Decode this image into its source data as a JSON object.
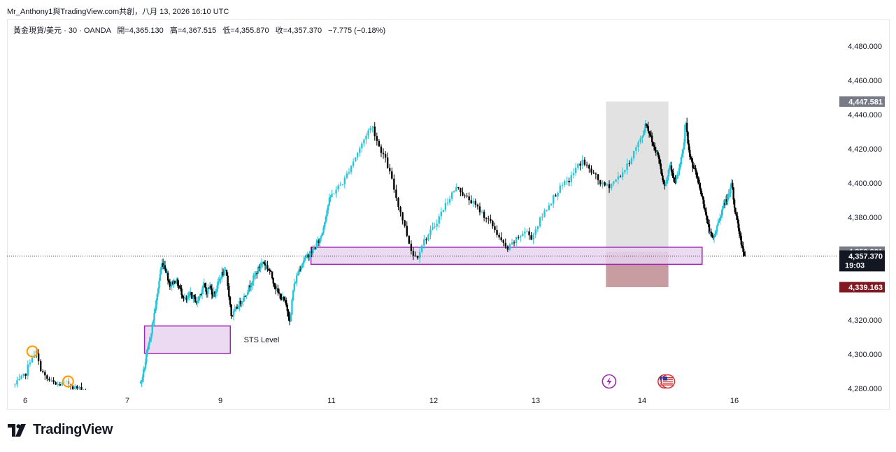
{
  "header": {
    "attribution": "Mr_Anthony1與TradingView.com共創，八月 13, 2026 16:10 UTC"
  },
  "legend": {
    "symbol": "黃金現貨/美元 · 30 · OANDA",
    "open": "開=4,365.130",
    "high": "高=4,367.515",
    "low": "低=4,355.870",
    "close": "收=4,357.370",
    "change": "−7.775 (−0.18%)"
  },
  "brand": {
    "name": "TradingView"
  },
  "chart_data": {
    "type": "candlestick",
    "symbol": "黃金現貨/美元 · 30 · OANDA",
    "ylim": [
      4278,
      4490
    ],
    "y_ticks": [
      4280,
      4300,
      4320,
      4340,
      4360,
      4380,
      4400,
      4420,
      4440,
      4460,
      4480
    ],
    "y_tick_labels": [
      "4,280.000",
      "4,300.000",
      "4,320.000",
      "4,340.000",
      "4,360.000",
      "4,380.000",
      "4,400.000",
      "4,420.000",
      "4,440.000",
      "4,460.000",
      "4,480.000"
    ],
    "x_range": [
      5.9,
      16.1
    ],
    "x_ticks": [
      6,
      7,
      9,
      11,
      12,
      13,
      14,
      16
    ],
    "x_tick_labels": [
      "6",
      "7",
      "9",
      "11",
      "12",
      "13",
      "14",
      "16"
    ],
    "current_price": {
      "value": 4357.37,
      "label": "4,357.370",
      "countdown": "19:03"
    },
    "price_labels": [
      {
        "value": 4447.581,
        "label": "4,447.581",
        "color": "#787b86"
      },
      {
        "value": 4359.901,
        "label": "4,359.901",
        "color": "#787b86"
      },
      {
        "value": 4339.163,
        "label": "4,339.163",
        "color": "#801922"
      }
    ],
    "zones": [
      {
        "label": "STS Level",
        "x0": 7.37,
        "x1": 9.18,
        "y0": 4300.5,
        "y1": 4316.5,
        "fill": "#e8d4ef",
        "stroke": "#9c27b0"
      },
      {
        "label": "",
        "x0": 10.63,
        "x1": 15.3,
        "y0": 4352.5,
        "y1": 4362.5,
        "fill": "#e8d4ef",
        "stroke": "#9c27b0"
      }
    ],
    "position": {
      "x0": 13.66,
      "x1": 14.57,
      "entry": 4359.901,
      "target": 4447.581,
      "stop": 4339.163,
      "profit_color": "#e0e0e0",
      "loss_color": "#c4989c"
    },
    "colors": {
      "up": "#26c6da",
      "down": "#000000"
    },
    "events": [
      {
        "x": 6.07,
        "kind": "earnings",
        "icon": "earnings-circle-icon"
      },
      {
        "x": 6.42,
        "kind": "earnings",
        "icon": "earnings-circle-icon"
      },
      {
        "x": 13.69,
        "kind": "lightning",
        "icon": "lightning-event-icon"
      },
      {
        "x": 14.49,
        "kind": "us-economic",
        "icon": "us-flag-icon"
      },
      {
        "x": 14.56,
        "kind": "us-economic",
        "icon": "us-flag-icon"
      }
    ],
    "path": [
      [
        5.9,
        4282
      ],
      [
        6.0,
        4288
      ],
      [
        6.05,
        4297
      ],
      [
        6.1,
        4302
      ],
      [
        6.14,
        4293
      ],
      [
        6.2,
        4286
      ],
      [
        6.3,
        4282
      ],
      [
        6.42,
        4283
      ],
      [
        6.5,
        4280
      ],
      [
        6.6,
        4279
      ],
      [
        7.0,
        4279
      ],
      [
        7.25,
        4280
      ],
      [
        7.3,
        4284
      ],
      [
        7.36,
        4291
      ],
      [
        7.42,
        4300
      ],
      [
        7.47,
        4306
      ],
      [
        7.52,
        4314
      ],
      [
        7.57,
        4322
      ],
      [
        7.62,
        4330
      ],
      [
        7.66,
        4338
      ],
      [
        7.7,
        4346
      ],
      [
        7.74,
        4353
      ],
      [
        7.8,
        4352
      ],
      [
        7.86,
        4346
      ],
      [
        7.92,
        4340
      ],
      [
        7.98,
        4342
      ],
      [
        8.05,
        4343
      ],
      [
        8.12,
        4339
      ],
      [
        8.2,
        4334
      ],
      [
        8.27,
        4331
      ],
      [
        8.35,
        4335
      ],
      [
        8.43,
        4333
      ],
      [
        8.5,
        4330
      ],
      [
        8.58,
        4336
      ],
      [
        8.64,
        4341
      ],
      [
        8.7,
        4336
      ],
      [
        8.77,
        4340
      ],
      [
        8.84,
        4335
      ],
      [
        8.9,
        4337
      ],
      [
        8.96,
        4342
      ],
      [
        9.03,
        4347
      ],
      [
        9.1,
        4348
      ],
      [
        9.14,
        4339
      ],
      [
        9.2,
        4322
      ],
      [
        9.28,
        4326
      ],
      [
        9.35,
        4330
      ],
      [
        9.42,
        4333
      ],
      [
        9.5,
        4338
      ],
      [
        9.57,
        4343
      ],
      [
        9.64,
        4347
      ],
      [
        9.7,
        4351
      ],
      [
        9.76,
        4354
      ],
      [
        9.82,
        4352
      ],
      [
        9.9,
        4348
      ],
      [
        9.96,
        4342
      ],
      [
        10.03,
        4336
      ],
      [
        10.1,
        4333
      ],
      [
        10.17,
        4330
      ],
      [
        10.22,
        4324
      ],
      [
        10.26,
        4319
      ],
      [
        10.3,
        4336
      ],
      [
        10.36,
        4344
      ],
      [
        10.42,
        4350
      ],
      [
        10.5,
        4355
      ],
      [
        10.58,
        4358
      ],
      [
        10.66,
        4360
      ],
      [
        10.72,
        4364
      ],
      [
        10.78,
        4366
      ],
      [
        10.84,
        4372
      ],
      [
        10.9,
        4382
      ],
      [
        10.96,
        4390
      ],
      [
        11.04,
        4396
      ],
      [
        11.12,
        4401
      ],
      [
        11.18,
        4409
      ],
      [
        11.24,
        4416
      ],
      [
        11.3,
        4423
      ],
      [
        11.35,
        4430
      ],
      [
        11.4,
        4433
      ],
      [
        11.46,
        4422
      ],
      [
        11.52,
        4415
      ],
      [
        11.58,
        4404
      ],
      [
        11.64,
        4390
      ],
      [
        11.7,
        4378
      ],
      [
        11.76,
        4365
      ],
      [
        11.8,
        4358
      ],
      [
        11.84,
        4357
      ],
      [
        11.88,
        4364
      ],
      [
        11.94,
        4369
      ],
      [
        12.0,
        4374
      ],
      [
        12.06,
        4381
      ],
      [
        12.12,
        4388
      ],
      [
        12.18,
        4394
      ],
      [
        12.24,
        4398
      ],
      [
        12.3,
        4392
      ],
      [
        12.36,
        4390
      ],
      [
        12.42,
        4386
      ],
      [
        12.48,
        4382
      ],
      [
        12.54,
        4378
      ],
      [
        12.6,
        4373
      ],
      [
        12.66,
        4366
      ],
      [
        12.72,
        4361
      ],
      [
        12.78,
        4365
      ],
      [
        12.84,
        4369
      ],
      [
        12.9,
        4372
      ],
      [
        12.96,
        4368
      ],
      [
        13.02,
        4376
      ],
      [
        13.08,
        4383
      ],
      [
        13.14,
        4389
      ],
      [
        13.2,
        4395
      ],
      [
        13.26,
        4399
      ],
      [
        13.32,
        4402
      ],
      [
        13.38,
        4409
      ],
      [
        13.44,
        4413
      ],
      [
        13.5,
        4408
      ],
      [
        13.56,
        4404
      ],
      [
        13.62,
        4399
      ],
      [
        13.68,
        4398
      ],
      [
        13.74,
        4401
      ],
      [
        13.8,
        4405
      ],
      [
        13.86,
        4410
      ],
      [
        13.92,
        4418
      ],
      [
        13.98,
        4425
      ],
      [
        14.04,
        4430
      ],
      [
        14.08,
        4436
      ],
      [
        14.12,
        4432
      ],
      [
        14.18,
        4428
      ],
      [
        14.24,
        4422
      ],
      [
        14.3,
        4419
      ],
      [
        14.36,
        4415
      ],
      [
        14.42,
        4406
      ],
      [
        14.48,
        4399
      ],
      [
        14.54,
        4402
      ],
      [
        14.6,
        4412
      ],
      [
        14.66,
        4406
      ],
      [
        14.72,
        4400
      ],
      [
        14.78,
        4405
      ],
      [
        14.84,
        4413
      ],
      [
        14.9,
        4420
      ],
      [
        14.94,
        4438
      ],
      [
        15.0,
        4420
      ],
      [
        15.06,
        4413
      ],
      [
        15.12,
        4409
      ],
      [
        15.18,
        4404
      ],
      [
        15.24,
        4398
      ],
      [
        15.3,
        4392
      ],
      [
        15.36,
        4385
      ],
      [
        15.42,
        4376
      ],
      [
        15.48,
        4370
      ],
      [
        15.54,
        4367
      ],
      [
        15.6,
        4372
      ],
      [
        15.66,
        4378
      ],
      [
        15.72,
        4383
      ],
      [
        15.78,
        4388
      ],
      [
        15.84,
        4391
      ],
      [
        15.9,
        4393
      ],
      [
        15.94,
        4401
      ],
      [
        16.0,
        4386
      ],
      [
        16.06,
        4378
      ],
      [
        16.1,
        4372
      ],
      [
        16.14,
        4366
      ],
      [
        16.18,
        4362
      ],
      [
        16.22,
        4358
      ],
      [
        16.25,
        4357
      ]
    ]
  }
}
